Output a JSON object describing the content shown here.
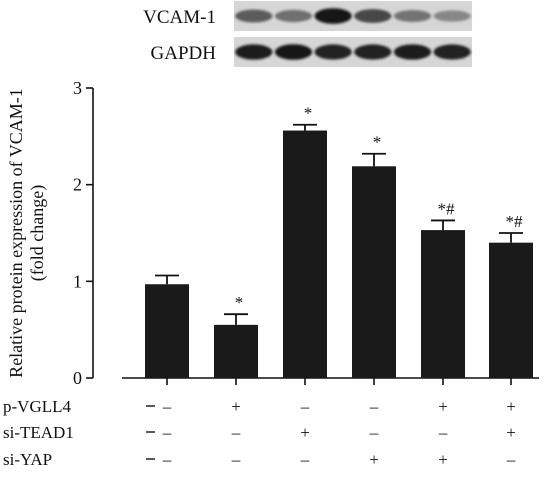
{
  "blot": {
    "rows": [
      {
        "label": "VCAM-1",
        "intensities": [
          0.62,
          0.52,
          0.95,
          0.72,
          0.5,
          0.4
        ]
      },
      {
        "label": "GAPDH",
        "intensities": [
          0.92,
          0.95,
          0.9,
          0.9,
          0.92,
          0.9
        ]
      }
    ]
  },
  "chart_data": {
    "type": "bar",
    "ylabel_lines": [
      "Relative protein expression of VCAM-1",
      "(fold change)"
    ],
    "ylim": [
      0,
      3
    ],
    "yticks": [
      0,
      1,
      2,
      3
    ],
    "ytick_labels": [
      "0",
      "1",
      "2",
      "3"
    ],
    "bar_color": "#1a1a1a",
    "values": [
      0.97,
      0.55,
      2.56,
      2.19,
      1.53,
      1.4
    ],
    "errors": [
      0.09,
      0.11,
      0.06,
      0.13,
      0.1,
      0.1
    ],
    "annotations": [
      "",
      "*",
      "*",
      "*",
      "*#",
      "*#"
    ],
    "condition_rows": [
      {
        "label": "p-VGLL4",
        "signs": [
          "–",
          "+",
          "–",
          "–",
          "+",
          "+"
        ]
      },
      {
        "label": "si-TEAD1",
        "signs": [
          "–",
          "–",
          "+",
          "–",
          "–",
          "+"
        ]
      },
      {
        "label": "si-YAP",
        "signs": [
          "–",
          "–",
          "–",
          "+",
          "+",
          "–"
        ]
      }
    ]
  }
}
